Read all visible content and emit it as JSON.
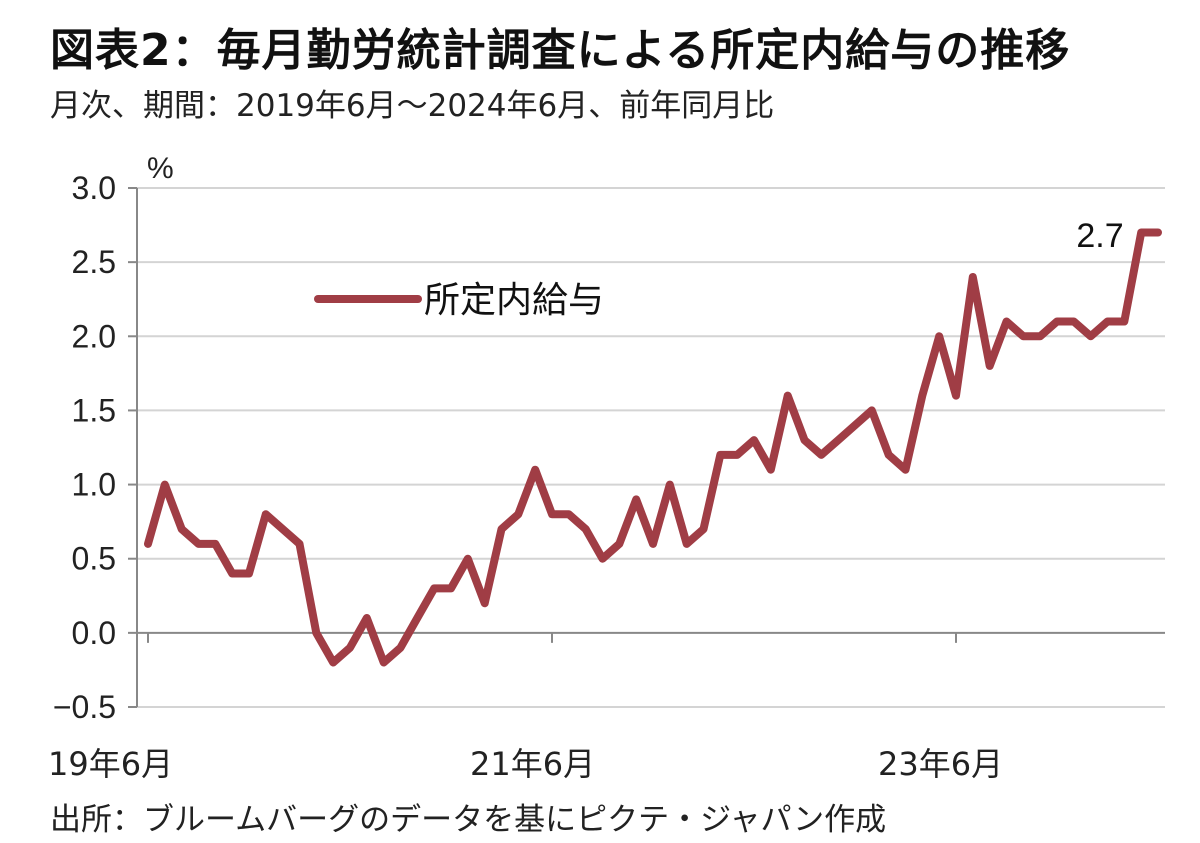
{
  "header": {
    "title": "図表2：毎月勤労統計調査による所定内給与の推移",
    "subtitle": "月次、期間：2019年6月～2024年6月、前年同月比"
  },
  "footer": {
    "source": "出所：ブルームバーグのデータを基にピクテ・ジャパン作成"
  },
  "colors": {
    "line": "#a03d45",
    "grid": "#d4d4d4",
    "axis": "#888888"
  },
  "chart_data": {
    "type": "line",
    "title": "",
    "xlabel": "",
    "ylabel": "%",
    "ylim": [
      -0.5,
      3.0
    ],
    "yticks": [
      -0.5,
      0.0,
      0.5,
      1.0,
      1.5,
      2.0,
      2.5,
      3.0
    ],
    "ytick_labels": [
      "−0.5",
      "0.0",
      "0.5",
      "1.0",
      "1.5",
      "2.0",
      "2.5",
      "3.0"
    ],
    "x_start": "2019-06",
    "x_end": "2024-06",
    "x_tick_labels": [
      {
        "month": "2019-06",
        "label": "19年6月"
      },
      {
        "month": "2021-06",
        "label": "21年6月"
      },
      {
        "month": "2023-06",
        "label": "23年6月"
      }
    ],
    "grid": true,
    "legend": {
      "position": "top-left",
      "entries": [
        "所定内給与"
      ]
    },
    "annotations": [
      {
        "month": "2024-06",
        "value": 2.7,
        "label": "2.7"
      }
    ],
    "series": [
      {
        "name": "所定内給与",
        "x": [
          "2019-06",
          "2019-07",
          "2019-08",
          "2019-09",
          "2019-10",
          "2019-11",
          "2019-12",
          "2020-01",
          "2020-02",
          "2020-03",
          "2020-04",
          "2020-05",
          "2020-06",
          "2020-07",
          "2020-08",
          "2020-09",
          "2020-10",
          "2020-11",
          "2020-12",
          "2021-01",
          "2021-02",
          "2021-03",
          "2021-04",
          "2021-05",
          "2021-06",
          "2021-07",
          "2021-08",
          "2021-09",
          "2021-10",
          "2021-11",
          "2021-12",
          "2022-01",
          "2022-02",
          "2022-03",
          "2022-04",
          "2022-05",
          "2022-06",
          "2022-07",
          "2022-08",
          "2022-09",
          "2022-10",
          "2022-11",
          "2022-12",
          "2023-01",
          "2023-02",
          "2023-03",
          "2023-04",
          "2023-05",
          "2023-06",
          "2023-07",
          "2023-08",
          "2023-09",
          "2023-10",
          "2023-11",
          "2023-12",
          "2024-01",
          "2024-02",
          "2024-03",
          "2024-04",
          "2024-05",
          "2024-06"
        ],
        "values": [
          0.6,
          1.0,
          0.7,
          0.6,
          0.6,
          0.4,
          0.4,
          0.8,
          0.7,
          0.6,
          0.0,
          -0.2,
          -0.1,
          0.1,
          -0.2,
          -0.1,
          0.1,
          0.3,
          0.3,
          0.5,
          0.2,
          0.7,
          0.8,
          1.1,
          0.8,
          0.8,
          0.7,
          0.5,
          0.6,
          0.9,
          0.6,
          1.0,
          0.6,
          0.7,
          1.2,
          1.2,
          1.3,
          1.1,
          1.6,
          1.3,
          1.2,
          1.3,
          1.4,
          1.5,
          1.2,
          1.1,
          1.6,
          2.0,
          1.6,
          2.4,
          1.8,
          2.1,
          2.0,
          2.0,
          2.1,
          2.1,
          2.0,
          2.1,
          2.1,
          2.7,
          2.7
        ]
      }
    ]
  }
}
